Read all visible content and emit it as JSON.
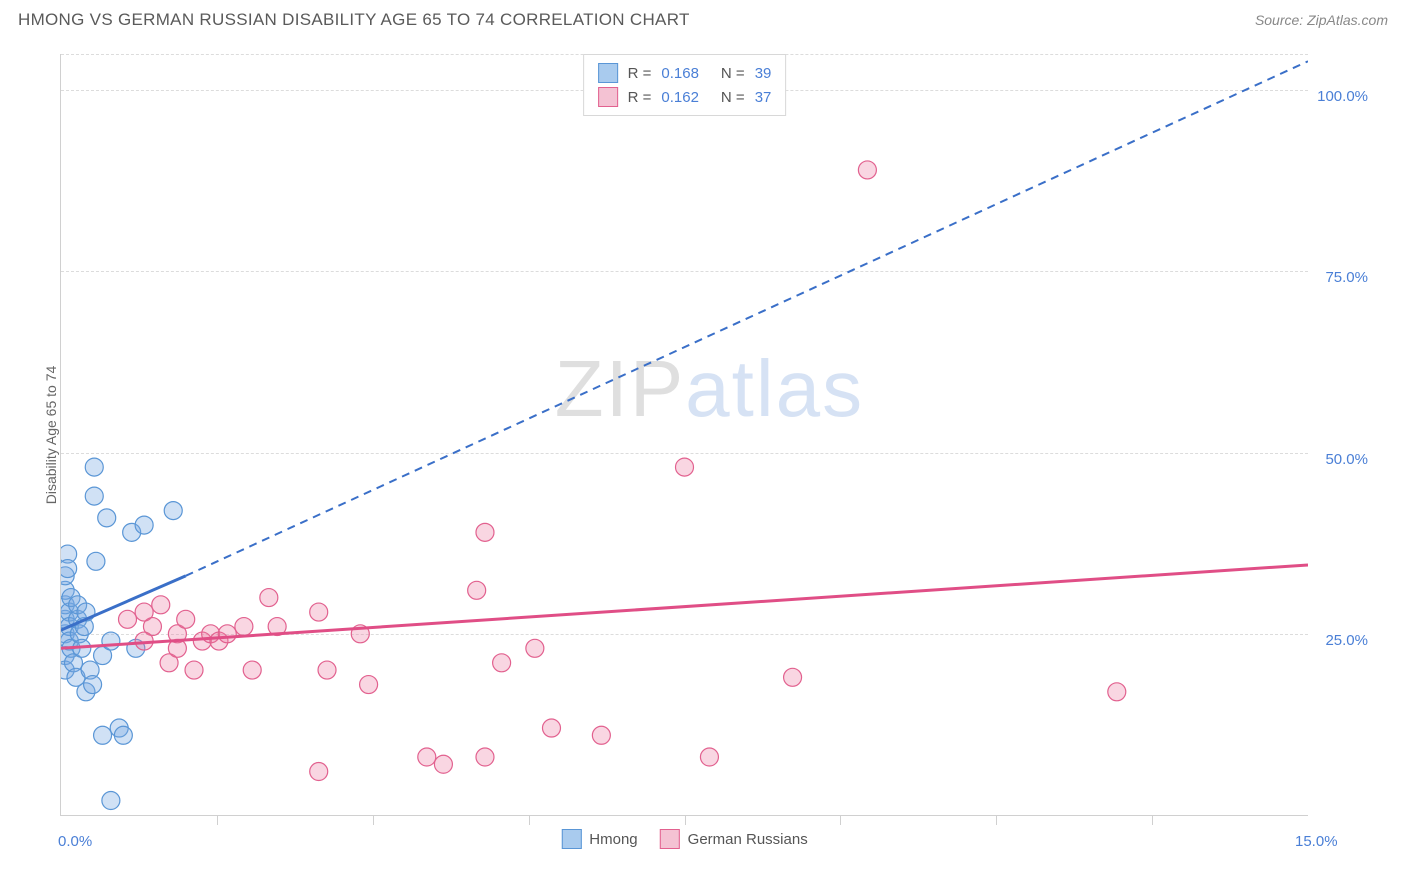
{
  "header": {
    "title": "HMONG VS GERMAN RUSSIAN DISABILITY AGE 65 TO 74 CORRELATION CHART",
    "source": "Source: ZipAtlas.com"
  },
  "watermark": {
    "part1": "ZIP",
    "part2": "atlas"
  },
  "chart": {
    "type": "scatter",
    "ylabel": "Disability Age 65 to 74",
    "xlim": [
      0,
      15
    ],
    "ylim": [
      0,
      105
    ],
    "x_axis_label_left": "0.0%",
    "x_axis_label_right": "15.0%",
    "y_ticks": [
      25.0,
      50.0,
      75.0,
      100.0
    ],
    "y_tick_labels": [
      "25.0%",
      "50.0%",
      "75.0%",
      "100.0%"
    ],
    "x_minor_ticks": [
      1.875,
      3.75,
      5.625,
      7.5,
      9.375,
      11.25,
      13.125
    ],
    "grid_color": "#dcdcdc",
    "background_color": "#ffffff",
    "axis_label_color": "#4a7fd6",
    "marker_radius": 9,
    "marker_stroke_width": 1.2,
    "series": [
      {
        "name": "Hmong",
        "color_fill": "rgba(120,170,225,0.35)",
        "color_stroke": "#5a96d6",
        "swatch_fill": "#a9cbee",
        "swatch_border": "#5a96d6",
        "R": "0.168",
        "N": "39",
        "trend_solid": {
          "x1": 0.0,
          "y1": 25.5,
          "x2": 1.5,
          "y2": 33.0
        },
        "trend_dash": {
          "x1": 1.5,
          "y1": 33.0,
          "x2": 15.0,
          "y2": 104.0
        },
        "trend_color": "#3a6fc8",
        "points": [
          [
            0.05,
            25
          ],
          [
            0.05,
            27
          ],
          [
            0.05,
            29
          ],
          [
            0.05,
            31
          ],
          [
            0.05,
            33
          ],
          [
            0.05,
            22
          ],
          [
            0.05,
            20
          ],
          [
            0.08,
            36
          ],
          [
            0.08,
            34
          ],
          [
            0.1,
            28
          ],
          [
            0.1,
            26
          ],
          [
            0.1,
            24
          ],
          [
            0.12,
            30
          ],
          [
            0.12,
            23
          ],
          [
            0.15,
            21
          ],
          [
            0.18,
            19
          ],
          [
            0.2,
            27
          ],
          [
            0.2,
            29
          ],
          [
            0.22,
            25
          ],
          [
            0.25,
            23
          ],
          [
            0.28,
            26
          ],
          [
            0.3,
            28
          ],
          [
            0.3,
            17
          ],
          [
            0.35,
            20
          ],
          [
            0.38,
            18
          ],
          [
            0.4,
            44
          ],
          [
            0.42,
            35
          ],
          [
            0.5,
            11
          ],
          [
            0.55,
            41
          ],
          [
            0.6,
            2
          ],
          [
            0.7,
            12
          ],
          [
            0.75,
            11
          ],
          [
            0.85,
            39
          ],
          [
            0.9,
            23
          ],
          [
            0.4,
            48
          ],
          [
            1.0,
            40
          ],
          [
            0.5,
            22
          ],
          [
            0.6,
            24
          ],
          [
            1.35,
            42
          ]
        ]
      },
      {
        "name": "German Russians",
        "color_fill": "rgba(235,120,160,0.30)",
        "color_stroke": "#e2618f",
        "swatch_fill": "#f4c2d3",
        "swatch_border": "#e2618f",
        "R": "0.162",
        "N": "37",
        "trend_solid": {
          "x1": 0.0,
          "y1": 23.0,
          "x2": 15.0,
          "y2": 34.5
        },
        "trend_dash": null,
        "trend_color": "#e04e86",
        "points": [
          [
            0.8,
            27
          ],
          [
            1.0,
            28
          ],
          [
            1.1,
            26
          ],
          [
            1.2,
            29
          ],
          [
            1.3,
            21
          ],
          [
            1.4,
            25
          ],
          [
            1.5,
            27
          ],
          [
            1.6,
            20
          ],
          [
            1.7,
            24
          ],
          [
            1.8,
            25
          ],
          [
            1.9,
            24
          ],
          [
            2.2,
            26
          ],
          [
            2.3,
            20
          ],
          [
            2.5,
            30
          ],
          [
            2.6,
            26
          ],
          [
            3.1,
            28
          ],
          [
            3.1,
            6
          ],
          [
            3.2,
            20
          ],
          [
            3.6,
            25
          ],
          [
            3.7,
            18
          ],
          [
            4.4,
            8
          ],
          [
            4.6,
            7
          ],
          [
            5.0,
            31
          ],
          [
            5.1,
            39
          ],
          [
            5.1,
            8
          ],
          [
            5.3,
            21
          ],
          [
            5.7,
            23
          ],
          [
            5.9,
            12
          ],
          [
            6.5,
            11
          ],
          [
            7.5,
            48
          ],
          [
            7.8,
            8
          ],
          [
            8.8,
            19
          ],
          [
            9.7,
            89
          ],
          [
            12.7,
            17
          ],
          [
            1.0,
            24
          ],
          [
            1.4,
            23
          ],
          [
            2.0,
            25
          ]
        ]
      }
    ],
    "legend_bottom": [
      {
        "label": "Hmong",
        "fill": "#a9cbee",
        "border": "#5a96d6"
      },
      {
        "label": "German Russians",
        "fill": "#f4c2d3",
        "border": "#e2618f"
      }
    ]
  }
}
